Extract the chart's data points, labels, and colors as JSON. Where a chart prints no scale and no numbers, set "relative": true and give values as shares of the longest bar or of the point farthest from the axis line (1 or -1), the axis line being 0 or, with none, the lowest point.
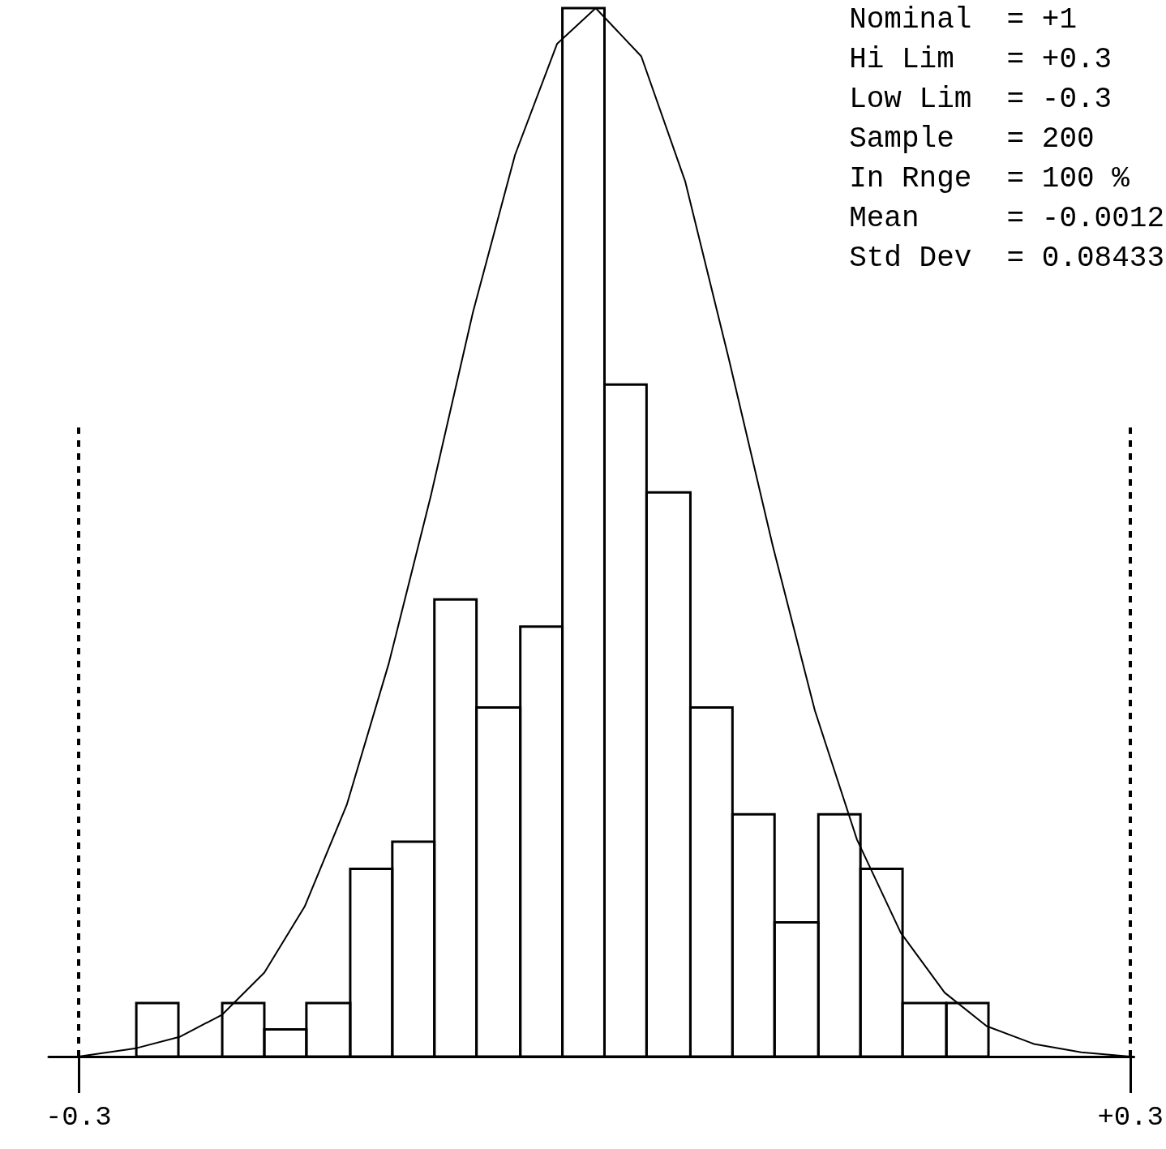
{
  "chart_data": {
    "type": "histogram",
    "relative": true,
    "series": [
      {
        "type": "histogram",
        "color": "#000000",
        "bins": [
          -0.267,
          -0.243,
          -0.218,
          -0.194,
          -0.17,
          -0.145,
          -0.121,
          -0.097,
          -0.073,
          -0.048,
          -0.024,
          0.0,
          0.024,
          0.049,
          0.073,
          0.097,
          0.122,
          0.146,
          0.17,
          0.195,
          0.219
        ],
        "values": [
          0.051,
          0,
          0.051,
          0.026,
          0.051,
          0.179,
          0.205,
          0.436,
          0.333,
          0.41,
          1,
          0.641,
          0.538,
          0.333,
          0.231,
          0.128,
          0.231,
          0.179,
          0.051,
          0.051
        ]
      },
      {
        "type": "line",
        "color": "#000000",
        "x": [
          -0.3,
          -0.267,
          -0.242,
          -0.218,
          -0.194,
          -0.171,
          -0.147,
          -0.123,
          -0.099,
          -0.075,
          -0.051,
          -0.027,
          -0.005,
          0.021,
          0.046,
          0.071,
          0.096,
          0.12,
          0.144,
          0.169,
          0.194,
          0.218,
          0.245,
          0.272,
          0.3
        ],
        "values": [
          0,
          0.008,
          0.019,
          0.04,
          0.08,
          0.143,
          0.24,
          0.375,
          0.535,
          0.71,
          0.86,
          0.966,
          1,
          0.954,
          0.835,
          0.665,
          0.487,
          0.33,
          0.207,
          0.118,
          0.061,
          0.029,
          0.012,
          0.004,
          0
        ]
      }
    ],
    "xlim": [
      -0.317,
      0.302
    ],
    "xticks": [
      {
        "value": -0.3,
        "label": "-0.3"
      },
      {
        "value": 0.3,
        "label": "+0.3"
      }
    ],
    "ref_lines": [
      {
        "axis": "x",
        "value": -0.3,
        "label": null,
        "line_style": "dashed"
      },
      {
        "axis": "x",
        "value": 0.3,
        "label": null,
        "line_style": "dashed"
      }
    ],
    "annotations": [
      "Nominal  = +1",
      "Hi Lim   = +0.3",
      "Low Lim  = -0.3",
      "Sample   = 200",
      "In Rnge  = 100 %",
      "Mean     = -0.0012",
      "Std Dev  = 0.08433"
    ],
    "marker": "none",
    "line_style": "solid",
    "grid": false
  }
}
